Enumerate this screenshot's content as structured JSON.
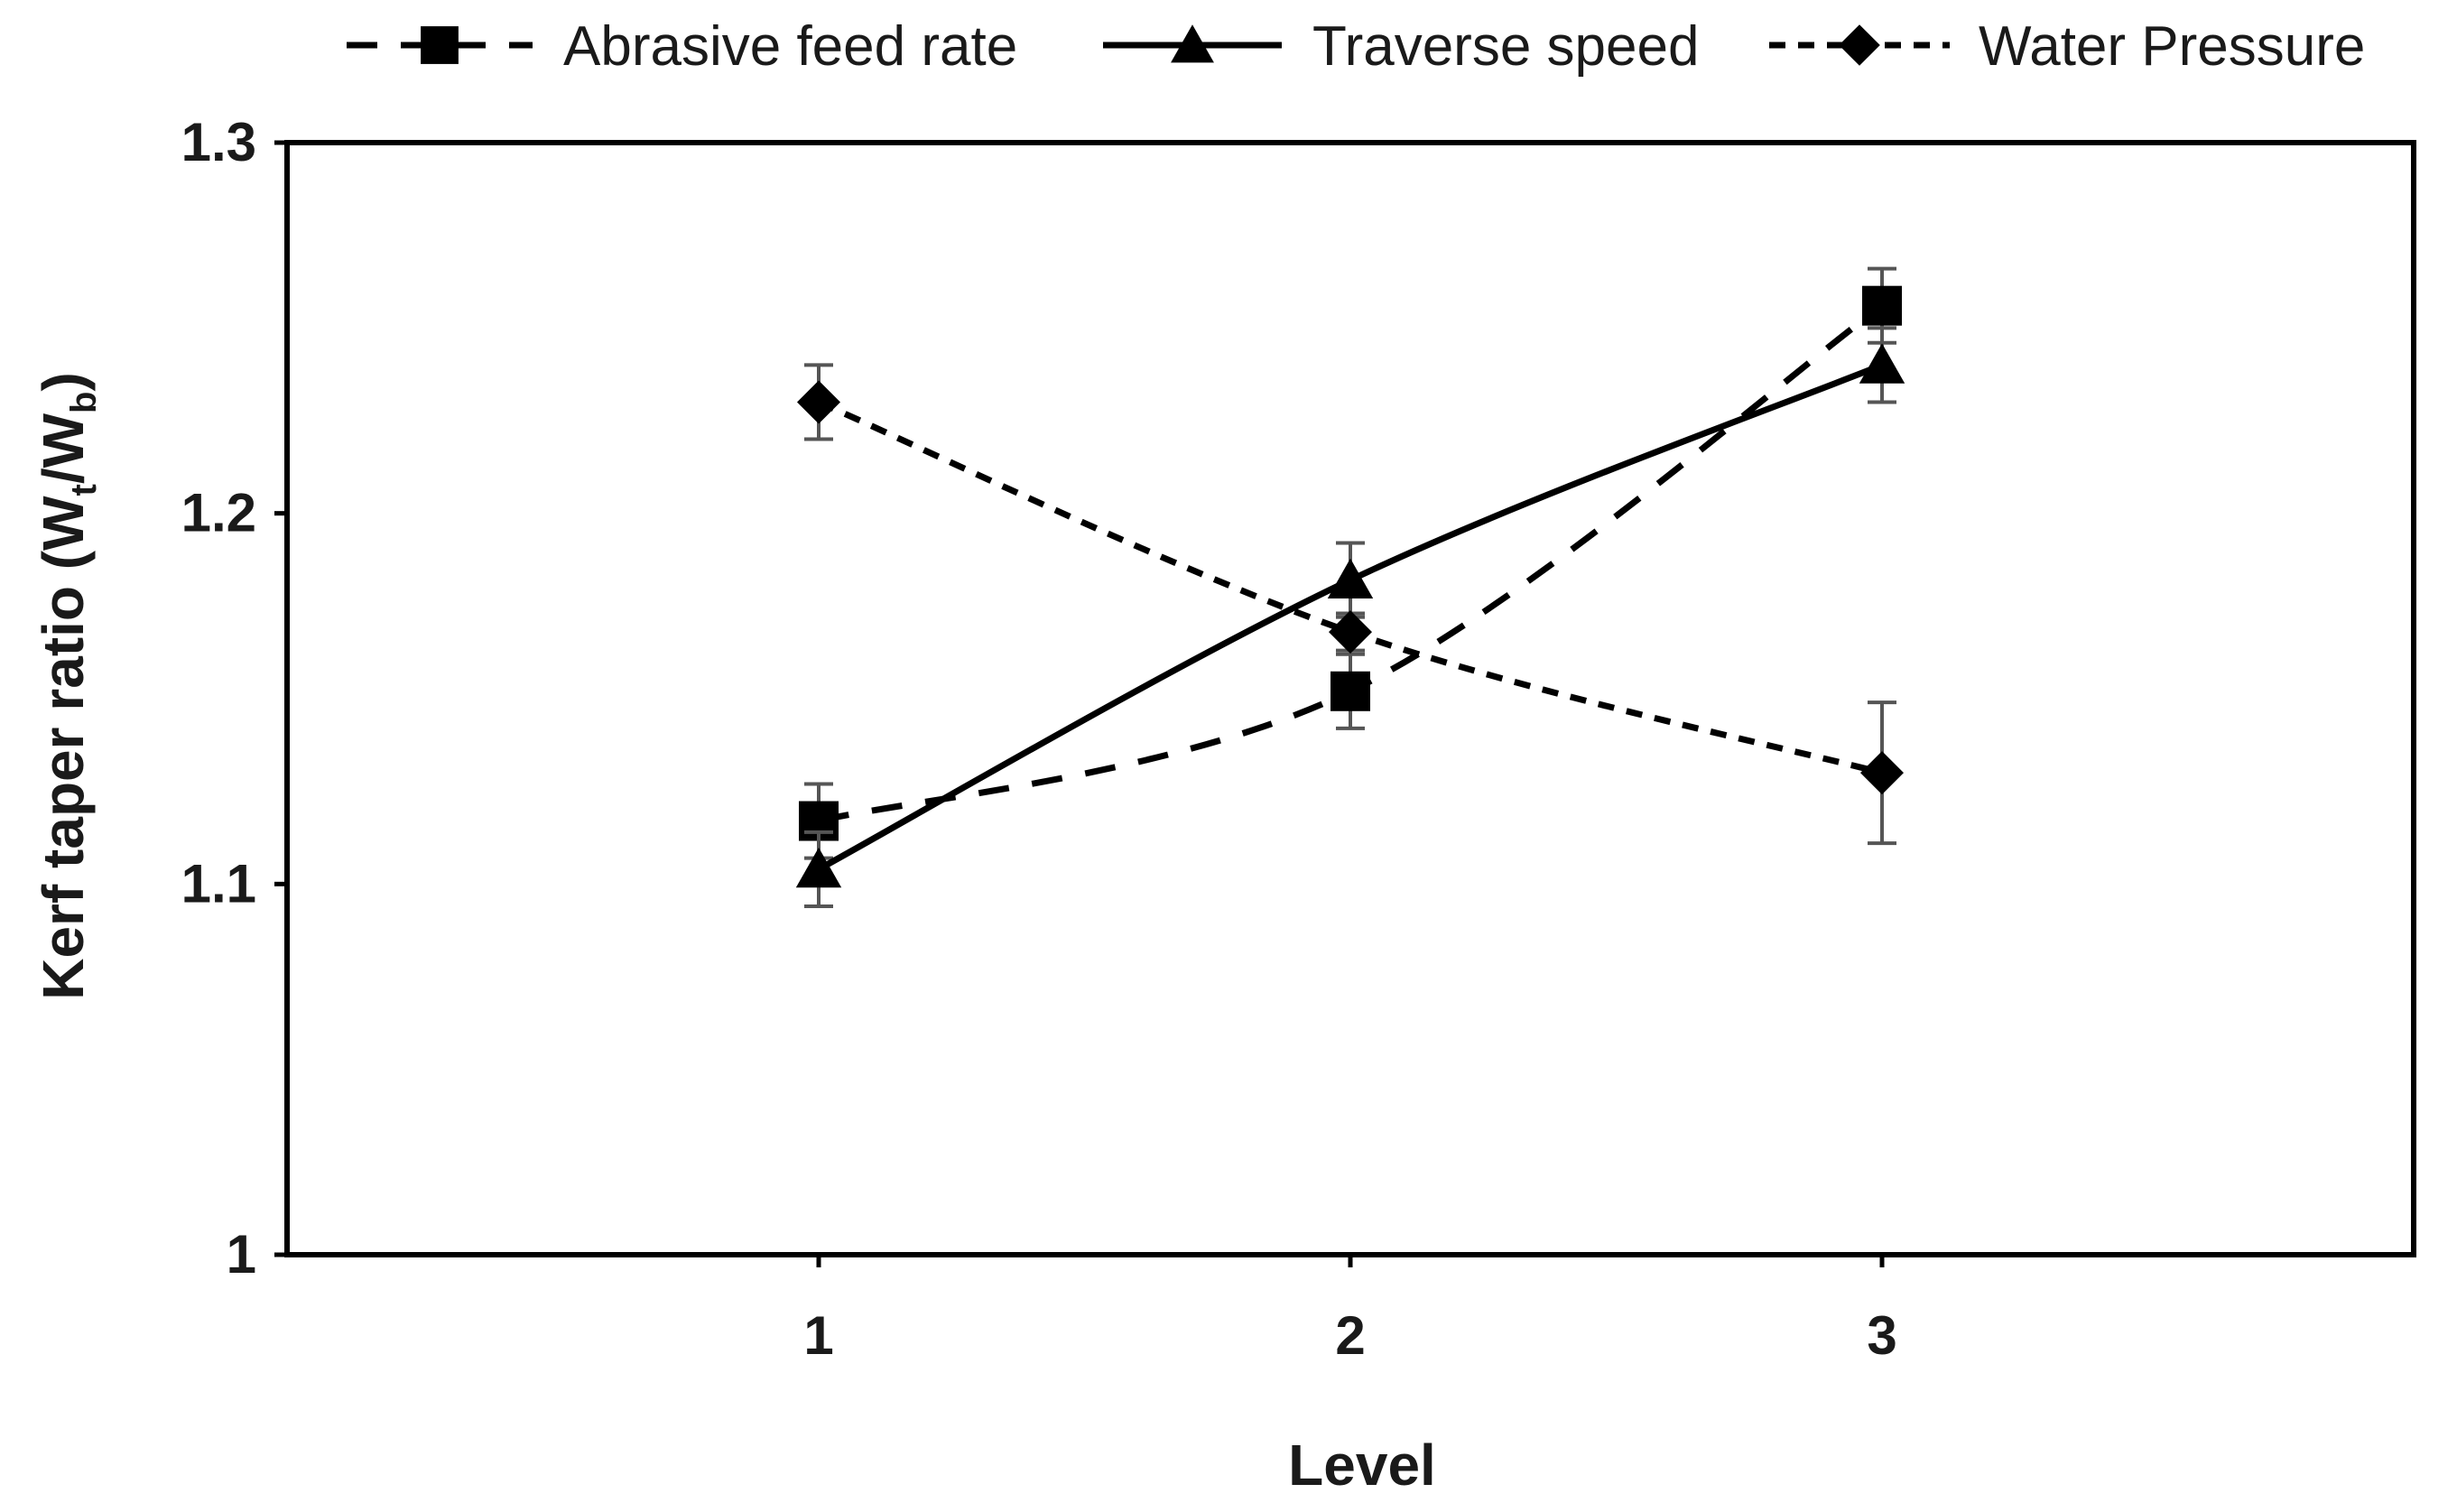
{
  "chart_data": {
    "type": "line",
    "title": "",
    "xlabel": "Level",
    "ylabel": {
      "prefix": "Kerf taper ratio (W",
      "sub1": "t",
      "mid": "/W",
      "sub2": "b",
      "suffix": ")"
    },
    "categories": [
      "1",
      "2",
      "3"
    ],
    "x": [
      1,
      2,
      3
    ],
    "xlim": [
      0,
      4
    ],
    "ylim": [
      1.0,
      1.3
    ],
    "yticks": [
      1.0,
      1.1,
      1.2,
      1.3
    ],
    "ytick_labels": [
      "1",
      "1.1",
      "1.2",
      "1.3"
    ],
    "grid": false,
    "legend_position": "top-center",
    "series": [
      {
        "name": "Abrasive feed rate",
        "marker": "square",
        "line": "dashed",
        "values": [
          1.117,
          1.152,
          1.256
        ],
        "errors": [
          0.01,
          0.01,
          0.01
        ]
      },
      {
        "name": "Traverse speed",
        "marker": "triangle",
        "line": "solid",
        "values": [
          1.104,
          1.182,
          1.24
        ],
        "errors": [
          0.01,
          0.01,
          0.01
        ]
      },
      {
        "name": "Water Pressure",
        "marker": "diamond",
        "line": "dotted",
        "values": [
          1.23,
          1.168,
          1.13
        ],
        "errors": [
          0.01,
          0.005,
          0.019
        ]
      }
    ]
  },
  "colors": {
    "line": "#000000",
    "error_bar": "#555555",
    "text": "#1a1a1a"
  }
}
